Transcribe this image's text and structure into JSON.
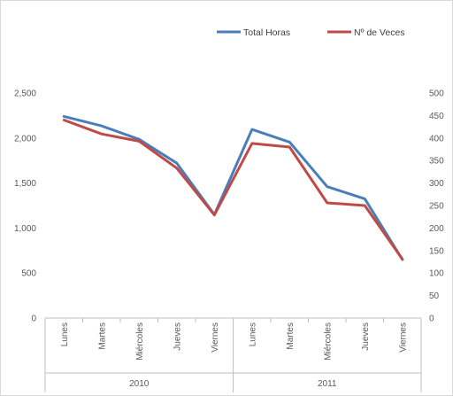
{
  "chart_data": {
    "type": "line",
    "categories": [
      "Lunes",
      "Martes",
      "Miércoles",
      "Jueves",
      "Viernes",
      "Lunes",
      "Martes",
      "Miércoles",
      "Jueves",
      "Viernes"
    ],
    "groups": [
      {
        "label": "2010",
        "start": 0,
        "end": 4
      },
      {
        "label": "2011",
        "start": 5,
        "end": 9
      }
    ],
    "series": [
      {
        "name": "Total Horas",
        "axis": "left",
        "color": "#4a7ebb",
        "values": [
          2240,
          2135,
          1985,
          1720,
          1150,
          2095,
          1955,
          1460,
          1325,
          650
        ]
      },
      {
        "name": "Nº de Veces",
        "axis": "right",
        "color": "#be4b48",
        "values": [
          440,
          409,
          393,
          333,
          229,
          388,
          380,
          256,
          250,
          131
        ]
      }
    ],
    "y_left": {
      "min": 0,
      "max": 2500,
      "ticks": [
        "0",
        "500",
        "1,000",
        "1,500",
        "2,000",
        "2,500"
      ]
    },
    "y_right": {
      "min": 0,
      "max": 500,
      "ticks": [
        "0",
        "50",
        "100",
        "150",
        "200",
        "250",
        "300",
        "350",
        "400",
        "450",
        "500"
      ]
    },
    "legend_position": "top-right",
    "grid": false
  }
}
